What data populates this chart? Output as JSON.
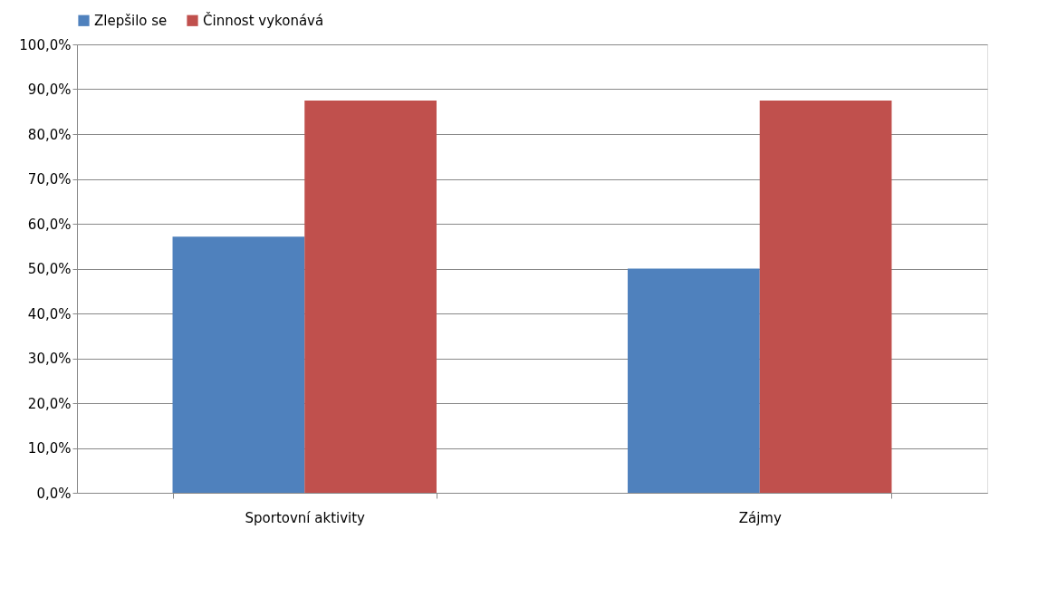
{
  "chart_data": {
    "type": "bar",
    "categories": [
      "Sportovní aktivity",
      "Zájmy"
    ],
    "series": [
      {
        "name": "Zlepšilo se",
        "color": "#4f81bd",
        "values": [
          57.1,
          50.0
        ]
      },
      {
        "name": "Činnost vykonává",
        "color": "#c0504d",
        "values": [
          87.5,
          87.5
        ]
      }
    ],
    "ylim": [
      0,
      100
    ],
    "yticks": [
      {
        "value": 0,
        "label": "0,0%"
      },
      {
        "value": 10,
        "label": "10,0%"
      },
      {
        "value": 20,
        "label": "20,0%"
      },
      {
        "value": 30,
        "label": "30,0%"
      },
      {
        "value": 40,
        "label": "40,0%"
      },
      {
        "value": 50,
        "label": "50,0%"
      },
      {
        "value": 60,
        "label": "60,0%"
      },
      {
        "value": 70,
        "label": "70,0%"
      },
      {
        "value": 80,
        "label": "80,0%"
      },
      {
        "value": 90,
        "label": "90,0%"
      },
      {
        "value": 100,
        "label": "100,0%"
      }
    ],
    "grid": "y",
    "legend": "top"
  }
}
